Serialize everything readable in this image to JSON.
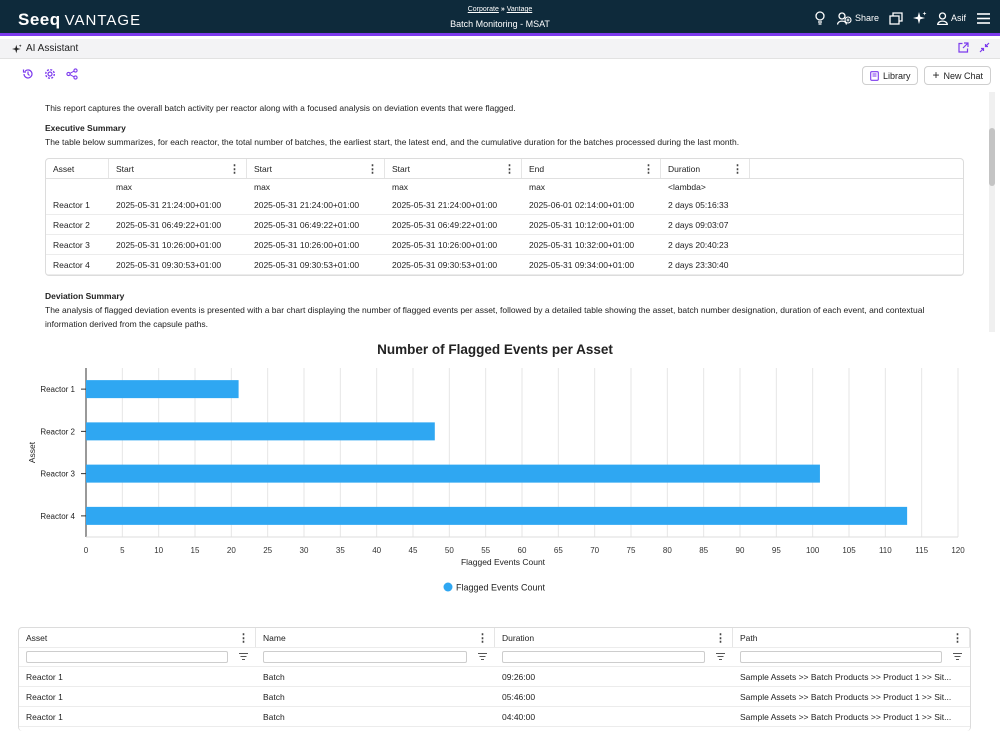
{
  "header": {
    "logo": "Seeq",
    "logo_suffix": "VANTAGE",
    "breadcrumb_1": "Corporate",
    "breadcrumb_sep": "»",
    "breadcrumb_2": "Vantage",
    "title": "Batch Monitoring - MSAT",
    "share_label": "Share",
    "user_label": "Asif"
  },
  "assistant": {
    "title": "AI Assistant",
    "library_label": "Library",
    "new_chat_label": "New Chat"
  },
  "report": {
    "intro": "This report captures the overall batch activity per reactor along with a focused analysis on deviation events that were flagged.",
    "exec_heading": "Executive Summary",
    "exec_text": "The table below summarizes, for each reactor, the total number of batches, the earliest start, the latest end, and the cumulative duration for the batches processed during the last month.",
    "dev_heading": "Deviation Summary",
    "dev_text_1": "The analysis of flagged deviation events is presented with a bar chart displaying the number of flagged events per asset, followed by a detailed table showing the asset, batch number designation, duration of each event, and contextual",
    "dev_text_2": "information derived from the capsule paths."
  },
  "summary_table": {
    "headers": [
      "Asset",
      "Start",
      "Start",
      "Start",
      "End",
      "Duration"
    ],
    "subheaders": [
      "",
      "max",
      "max",
      "max",
      "max",
      "<lambda>"
    ],
    "rows": [
      [
        "Reactor 1",
        "2025-05-31 21:24:00+01:00",
        "2025-05-31 21:24:00+01:00",
        "2025-05-31 21:24:00+01:00",
        "2025-06-01 02:14:00+01:00",
        "2 days 05:16:33"
      ],
      [
        "Reactor 2",
        "2025-05-31 06:49:22+01:00",
        "2025-05-31 06:49:22+01:00",
        "2025-05-31 06:49:22+01:00",
        "2025-05-31 10:12:00+01:00",
        "2 days 09:03:07"
      ],
      [
        "Reactor 3",
        "2025-05-31 10:26:00+01:00",
        "2025-05-31 10:26:00+01:00",
        "2025-05-31 10:26:00+01:00",
        "2025-05-31 10:32:00+01:00",
        "2 days 20:40:23"
      ],
      [
        "Reactor 4",
        "2025-05-31 09:30:53+01:00",
        "2025-05-31 09:30:53+01:00",
        "2025-05-31 09:30:53+01:00",
        "2025-05-31 09:34:00+01:00",
        "2 days 23:30:40"
      ]
    ]
  },
  "chart_data": {
    "type": "bar",
    "orientation": "horizontal",
    "title": "Number of Flagged Events per Asset",
    "xlabel": "Flagged Events Count",
    "ylabel": "Asset",
    "categories": [
      "Reactor 1",
      "Reactor 2",
      "Reactor 3",
      "Reactor 4"
    ],
    "series": [
      {
        "name": "Flagged Events Count",
        "values": [
          21,
          48,
          101,
          113
        ]
      }
    ],
    "xlim": [
      0,
      120
    ],
    "xticks": [
      0,
      5,
      10,
      15,
      20,
      25,
      30,
      35,
      40,
      45,
      50,
      55,
      60,
      65,
      70,
      75,
      80,
      85,
      90,
      95,
      100,
      105,
      110,
      115,
      120
    ],
    "grid": true,
    "legend_position": "bottom",
    "bar_color": "#2fa7f2"
  },
  "events_table": {
    "headers": [
      "Asset",
      "Name",
      "Duration",
      "Path"
    ],
    "rows": [
      [
        "Reactor 1",
        "Batch",
        "09:26:00",
        "Sample Assets >> Batch Products >> Product 1 >> Sit..."
      ],
      [
        "Reactor 1",
        "Batch",
        "05:46:00",
        "Sample Assets >> Batch Products >> Product 1 >> Sit..."
      ],
      [
        "Reactor 1",
        "Batch",
        "04:40:00",
        "Sample Assets >> Batch Products >> Product 1 >> Sit..."
      ]
    ]
  }
}
